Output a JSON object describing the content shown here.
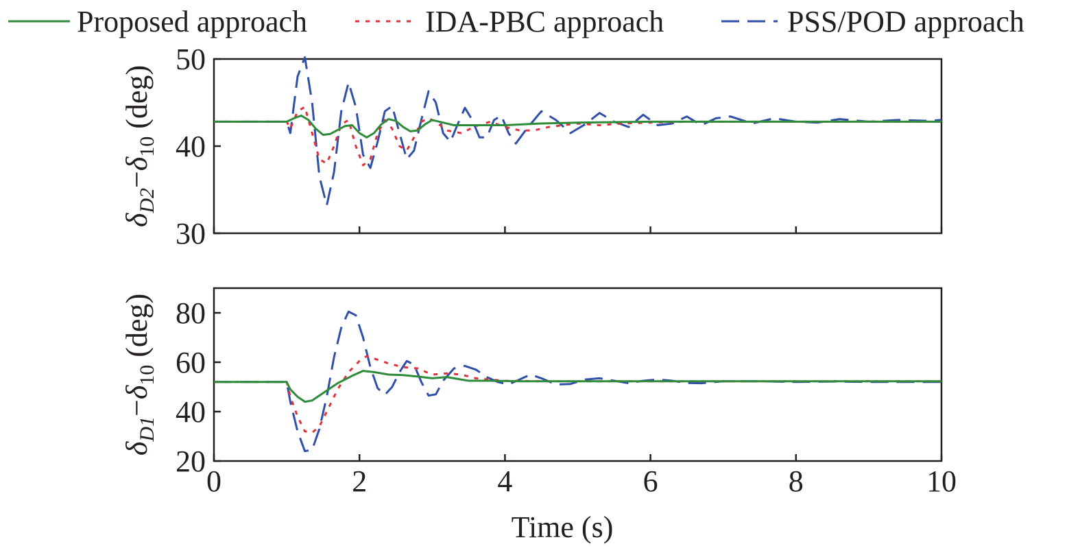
{
  "legend": [
    {
      "name": "Proposed approach",
      "color": "#2e8b3a",
      "dash": "solid"
    },
    {
      "name": "IDA-PBC approach",
      "color": "#e0323a",
      "dash": "dotted"
    },
    {
      "name": "PSS/POD approach",
      "color": "#2f4fa8",
      "dash": "dashed"
    }
  ],
  "xlabel": "Time (s)",
  "chart_data": [
    {
      "type": "line",
      "ylabel_parts": {
        "sym1": "δ",
        "sub1": "D2",
        "minus": "−",
        "sym2": "δ",
        "sub2": "10",
        "unit": " (deg)"
      },
      "xlim": [
        0,
        10
      ],
      "ylim": [
        30,
        50
      ],
      "xticks": [
        0,
        2,
        4,
        6,
        8,
        10
      ],
      "yticks": [
        30,
        40,
        50
      ],
      "xtick_labels_shown": false,
      "series": [
        {
          "name": "Proposed approach",
          "x": [
            0,
            1.0,
            1.1,
            1.2,
            1.3,
            1.4,
            1.5,
            1.6,
            1.8,
            1.9,
            2.0,
            2.1,
            2.2,
            2.3,
            2.4,
            2.5,
            2.6,
            2.7,
            2.8,
            2.9,
            3.0,
            3.1,
            3.3,
            3.6,
            4.0,
            4.5,
            5.0,
            6.0,
            7.0,
            8.0,
            9.0,
            10.0
          ],
          "y": [
            42.8,
            42.8,
            43.2,
            43.5,
            43.0,
            42.0,
            41.3,
            41.4,
            42.3,
            42.4,
            41.5,
            41.0,
            41.5,
            42.5,
            43.1,
            42.9,
            42.2,
            41.7,
            41.8,
            42.5,
            43.0,
            42.8,
            42.4,
            42.4,
            42.4,
            42.6,
            42.7,
            42.8,
            42.8,
            42.8,
            42.8,
            42.8
          ]
        },
        {
          "name": "IDA-PBC approach",
          "x": [
            0,
            1.0,
            1.05,
            1.15,
            1.25,
            1.35,
            1.45,
            1.55,
            1.65,
            1.75,
            1.85,
            1.95,
            2.05,
            2.15,
            2.25,
            2.35,
            2.45,
            2.55,
            2.65,
            2.75,
            2.85,
            2.95,
            3.05,
            3.2,
            3.4,
            3.6,
            3.8,
            4.0,
            4.2,
            4.4,
            4.6,
            4.8,
            5.0,
            5.3,
            5.6,
            6.0,
            6.5,
            7.0,
            8.0,
            10.0
          ],
          "y": [
            42.8,
            42.8,
            42.0,
            44.0,
            44.5,
            41.5,
            38.5,
            38.0,
            40.0,
            42.5,
            43.0,
            40.0,
            37.8,
            38.5,
            41.5,
            43.0,
            42.0,
            40.0,
            39.5,
            41.0,
            42.8,
            43.2,
            42.8,
            41.8,
            41.5,
            42.3,
            42.8,
            42.2,
            41.8,
            41.8,
            42.2,
            42.4,
            42.6,
            42.4,
            42.6,
            42.7,
            42.8,
            42.8,
            42.8,
            42.8
          ]
        },
        {
          "name": "PSS/POD approach",
          "x": [
            0,
            1.0,
            1.05,
            1.15,
            1.25,
            1.35,
            1.45,
            1.55,
            1.65,
            1.75,
            1.85,
            1.95,
            2.05,
            2.15,
            2.25,
            2.35,
            2.45,
            2.55,
            2.65,
            2.75,
            2.85,
            2.95,
            3.05,
            3.15,
            3.25,
            3.35,
            3.45,
            3.55,
            3.65,
            3.75,
            3.85,
            3.95,
            4.05,
            4.15,
            4.3,
            4.5,
            4.7,
            4.9,
            5.1,
            5.3,
            5.5,
            5.7,
            5.9,
            6.1,
            6.3,
            6.5,
            6.7,
            6.9,
            7.1,
            7.4,
            7.7,
            8.0,
            8.3,
            8.6,
            9.0,
            9.4,
            9.8,
            10.0
          ],
          "y": [
            42.8,
            42.8,
            41.5,
            48.0,
            50.2,
            45.0,
            36.5,
            33.2,
            37.0,
            44.0,
            47.3,
            44.5,
            39.0,
            37.5,
            40.5,
            44.0,
            44.6,
            41.5,
            38.5,
            39.5,
            43.0,
            46.3,
            45.0,
            41.5,
            40.5,
            42.5,
            44.4,
            43.0,
            41.0,
            41.0,
            43.0,
            43.5,
            41.5,
            40.3,
            42.0,
            44.0,
            43.0,
            41.5,
            42.5,
            43.8,
            42.8,
            42.2,
            43.6,
            42.4,
            42.6,
            43.4,
            42.4,
            43.2,
            43.4,
            42.6,
            43.2,
            42.8,
            42.7,
            43.1,
            42.8,
            43.0,
            42.9,
            43.0
          ]
        }
      ]
    },
    {
      "type": "line",
      "ylabel_parts": {
        "sym1": "δ",
        "sub1": "D1",
        "minus": "−",
        "sym2": "δ",
        "sub2": "10",
        "unit": " (deg)"
      },
      "xlim": [
        0,
        10
      ],
      "ylim": [
        20,
        90
      ],
      "xticks": [
        0,
        2,
        4,
        6,
        8,
        10
      ],
      "yticks": [
        20,
        40,
        60,
        80
      ],
      "xtick_labels_shown": true,
      "series": [
        {
          "name": "Proposed approach",
          "x": [
            0,
            1.0,
            1.05,
            1.15,
            1.25,
            1.35,
            1.5,
            1.7,
            1.9,
            2.05,
            2.2,
            2.4,
            2.6,
            2.8,
            3.0,
            3.2,
            3.5,
            3.8,
            4.2,
            5.0,
            6.0,
            7.0,
            8.0,
            10.0
          ],
          "y": [
            52.0,
            52.0,
            49.0,
            46.0,
            44.0,
            44.5,
            47.5,
            51.5,
            54.5,
            56.5,
            56.0,
            55.0,
            54.8,
            54.2,
            53.5,
            54.0,
            52.5,
            52.5,
            52.3,
            52.3,
            52.3,
            52.3,
            52.3,
            52.3
          ]
        },
        {
          "name": "IDA-PBC approach",
          "x": [
            0,
            1.0,
            1.05,
            1.15,
            1.25,
            1.35,
            1.45,
            1.55,
            1.7,
            1.85,
            2.0,
            2.1,
            2.2,
            2.4,
            2.6,
            2.8,
            3.0,
            3.2,
            3.4,
            3.6,
            3.8,
            4.0,
            4.5,
            5.0,
            6.0,
            10.0
          ],
          "y": [
            52.0,
            52.0,
            46.0,
            38.0,
            32.0,
            31.5,
            34.0,
            40.0,
            49.0,
            56.0,
            60.5,
            62.5,
            61.5,
            59.5,
            58.0,
            57.5,
            55.0,
            55.5,
            55.0,
            53.5,
            53.0,
            52.5,
            52.3,
            52.3,
            52.3,
            52.3
          ]
        },
        {
          "name": "PSS/POD approach",
          "x": [
            0,
            1.0,
            1.05,
            1.15,
            1.25,
            1.35,
            1.45,
            1.55,
            1.65,
            1.75,
            1.85,
            1.95,
            2.05,
            2.15,
            2.25,
            2.35,
            2.45,
            2.55,
            2.65,
            2.75,
            2.85,
            2.95,
            3.05,
            3.15,
            3.3,
            3.45,
            3.6,
            3.75,
            3.9,
            4.05,
            4.2,
            4.35,
            4.5,
            4.7,
            4.9,
            5.1,
            5.3,
            5.5,
            5.7,
            5.9,
            6.1,
            6.3,
            6.5,
            6.7,
            7.0,
            7.5,
            8.0,
            8.5,
            9.0,
            10.0
          ],
          "y": [
            52.0,
            52.0,
            44.0,
            32.0,
            24.0,
            24.5,
            33.0,
            46.0,
            62.0,
            74.0,
            80.5,
            79.0,
            70.0,
            58.0,
            49.5,
            46.8,
            50.0,
            56.0,
            60.5,
            59.0,
            52.0,
            46.5,
            47.0,
            52.5,
            57.5,
            58.5,
            57.0,
            54.0,
            52.0,
            51.0,
            53.0,
            55.0,
            53.5,
            51.0,
            51.2,
            53.0,
            53.5,
            52.5,
            51.5,
            52.5,
            53.0,
            52.5,
            51.6,
            51.5,
            52.3,
            52.3,
            52.0,
            52.2,
            52.0,
            52.0
          ]
        }
      ]
    }
  ]
}
